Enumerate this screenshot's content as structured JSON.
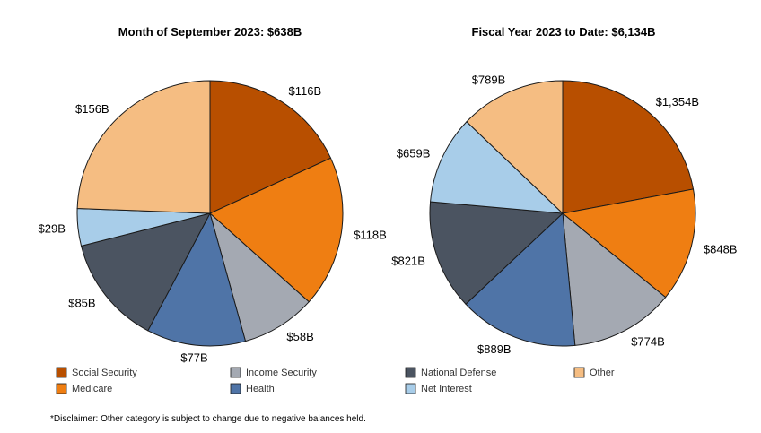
{
  "chart_data": [
    {
      "type": "pie",
      "title": "Month of September 2023: $638B",
      "slices": [
        {
          "name": "Social Security",
          "value": 116,
          "label": "$116B"
        },
        {
          "name": "Medicare",
          "value": 118,
          "label": "$118B"
        },
        {
          "name": "Income Security",
          "value": 58,
          "label": "$58B"
        },
        {
          "name": "Health",
          "value": 77,
          "label": "$77B"
        },
        {
          "name": "National Defense",
          "value": 85,
          "label": "$85B"
        },
        {
          "name": "Net Interest",
          "value": 29,
          "label": "$29B"
        },
        {
          "name": "Other",
          "value": 156,
          "label": "$156B"
        }
      ]
    },
    {
      "type": "pie",
      "title": "Fiscal Year 2023 to Date: $6,134B",
      "slices": [
        {
          "name": "Social Security",
          "value": 1354,
          "label": "$1,354B"
        },
        {
          "name": "Medicare",
          "value": 848,
          "label": "$848B"
        },
        {
          "name": "Income Security",
          "value": 774,
          "label": "$774B"
        },
        {
          "name": "Health",
          "value": 889,
          "label": "$889B"
        },
        {
          "name": "National Defense",
          "value": 821,
          "label": "$821B"
        },
        {
          "name": "Net Interest",
          "value": 659,
          "label": "$659B"
        },
        {
          "name": "Other",
          "value": 789,
          "label": "$789B"
        }
      ]
    }
  ],
  "legend": [
    {
      "name": "Social Security",
      "color": "#b84f00"
    },
    {
      "name": "Medicare",
      "color": "#ef7e12"
    },
    {
      "name": "Income Security",
      "color": "#a4a9b2"
    },
    {
      "name": "Health",
      "color": "#4f74a7"
    },
    {
      "name": "National Defense",
      "color": "#4b5461"
    },
    {
      "name": "Net Interest",
      "color": "#a8cde9"
    },
    {
      "name": "Other",
      "color": "#f5bd82"
    }
  ],
  "footnote": "*Disclaimer: Other category is subject to change due to negative balances held."
}
